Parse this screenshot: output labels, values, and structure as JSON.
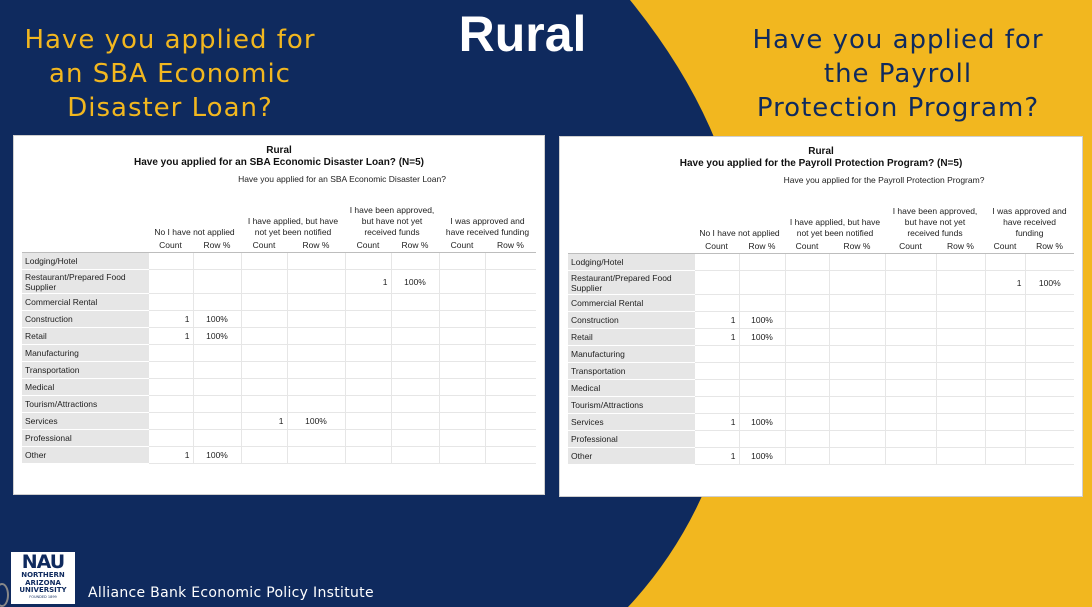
{
  "page": {
    "title": "Rural",
    "left_heading": [
      "Have you applied for",
      "an SBA Economic",
      "Disaster Loan?"
    ],
    "right_heading": [
      "Have you applied for",
      "the Payroll",
      "Protection Program?"
    ],
    "footer": "Alliance Bank Economic Policy Institute",
    "logo": {
      "top": "NAU",
      "line1": "NORTHERN",
      "line2": "ARIZONA",
      "line3": "UNIVERSITY",
      "line4": "FOUNDED 1899"
    },
    "colors": {
      "navy": "#0f2a5e",
      "gold": "#f2b71f"
    }
  },
  "left_table": {
    "title1": "Rural",
    "title2": "Have you applied for an SBA Economic Disaster Loan? (N=5)",
    "question": "Have you applied for an SBA Economic Disaster Loan?",
    "categories": [
      "No I have not applied",
      "I have applied, but have not yet been notified",
      "I have been approved, but have not yet received funds",
      "I was approved and have received funding"
    ],
    "sub_headers": [
      "Count",
      "Row %",
      "Count",
      "Row %",
      "Count",
      "Row %",
      "Count",
      "Row %"
    ],
    "rows": [
      {
        "label": "Lodging/Hotel",
        "cells": [
          "",
          "",
          "",
          "",
          "",
          "",
          "",
          ""
        ]
      },
      {
        "label": "Restaurant/Prepared Food Supplier",
        "cells": [
          "",
          "",
          "",
          "",
          "1",
          "100%",
          "",
          ""
        ]
      },
      {
        "label": "Commercial Rental",
        "cells": [
          "",
          "",
          "",
          "",
          "",
          "",
          "",
          ""
        ]
      },
      {
        "label": "Construction",
        "cells": [
          "1",
          "100%",
          "",
          "",
          "",
          "",
          "",
          ""
        ]
      },
      {
        "label": "Retail",
        "cells": [
          "1",
          "100%",
          "",
          "",
          "",
          "",
          "",
          ""
        ]
      },
      {
        "label": "Manufacturing",
        "cells": [
          "",
          "",
          "",
          "",
          "",
          "",
          "",
          ""
        ]
      },
      {
        "label": "Transportation",
        "cells": [
          "",
          "",
          "",
          "",
          "",
          "",
          "",
          ""
        ]
      },
      {
        "label": "Medical",
        "cells": [
          "",
          "",
          "",
          "",
          "",
          "",
          "",
          ""
        ]
      },
      {
        "label": "Tourism/Attractions",
        "cells": [
          "",
          "",
          "",
          "",
          "",
          "",
          "",
          ""
        ]
      },
      {
        "label": "Services",
        "cells": [
          "",
          "",
          "1",
          "100%",
          "",
          "",
          "",
          ""
        ]
      },
      {
        "label": "Professional",
        "cells": [
          "",
          "",
          "",
          "",
          "",
          "",
          "",
          ""
        ]
      },
      {
        "label": "Other",
        "cells": [
          "1",
          "100%",
          "",
          "",
          "",
          "",
          "",
          ""
        ]
      }
    ]
  },
  "right_table": {
    "title1": "Rural",
    "title2": "Have you applied for the Payroll Protection Program? (N=5)",
    "question": "Have you applied for the Payroll Protection Program?",
    "categories": [
      "No I have not applied",
      "I have applied, but have not yet been notified",
      "I have been approved, but have not yet received funds",
      "I was approved and have received funding"
    ],
    "sub_headers": [
      "Count",
      "Row %",
      "Count",
      "Row %",
      "Count",
      "Row %",
      "Count",
      "Row %"
    ],
    "rows": [
      {
        "label": "Lodging/Hotel",
        "cells": [
          "",
          "",
          "",
          "",
          "",
          "",
          "",
          ""
        ]
      },
      {
        "label": "Restaurant/Prepared Food Supplier",
        "cells": [
          "",
          "",
          "",
          "",
          "",
          "",
          "1",
          "100%"
        ]
      },
      {
        "label": "Commercial Rental",
        "cells": [
          "",
          "",
          "",
          "",
          "",
          "",
          "",
          ""
        ]
      },
      {
        "label": "Construction",
        "cells": [
          "1",
          "100%",
          "",
          "",
          "",
          "",
          "",
          ""
        ]
      },
      {
        "label": "Retail",
        "cells": [
          "1",
          "100%",
          "",
          "",
          "",
          "",
          "",
          ""
        ]
      },
      {
        "label": "Manufacturing",
        "cells": [
          "",
          "",
          "",
          "",
          "",
          "",
          "",
          ""
        ]
      },
      {
        "label": "Transportation",
        "cells": [
          "",
          "",
          "",
          "",
          "",
          "",
          "",
          ""
        ]
      },
      {
        "label": "Medical",
        "cells": [
          "",
          "",
          "",
          "",
          "",
          "",
          "",
          ""
        ]
      },
      {
        "label": "Tourism/Attractions",
        "cells": [
          "",
          "",
          "",
          "",
          "",
          "",
          "",
          ""
        ]
      },
      {
        "label": "Services",
        "cells": [
          "1",
          "100%",
          "",
          "",
          "",
          "",
          "",
          ""
        ]
      },
      {
        "label": "Professional",
        "cells": [
          "",
          "",
          "",
          "",
          "",
          "",
          "",
          ""
        ]
      },
      {
        "label": "Other",
        "cells": [
          "1",
          "100%",
          "",
          "",
          "",
          "",
          "",
          ""
        ]
      }
    ]
  }
}
